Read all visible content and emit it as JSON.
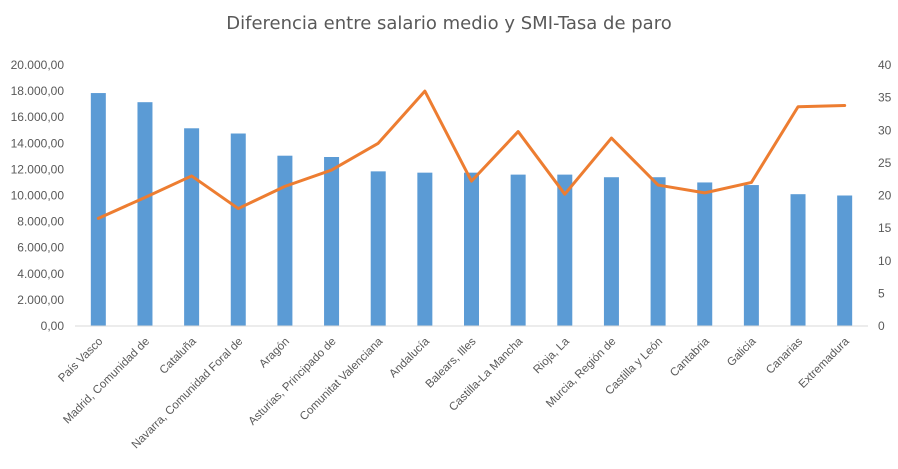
{
  "chart_data": {
    "type": "bar",
    "title": "Diferencia entre salario medio y SMI-Tasa de paro",
    "categories": [
      "País Vasco",
      "Madrid, Comunidad de",
      "Cataluña",
      "Navarra, Comunidad Foral de",
      "Aragón",
      "Asturias, Principado de",
      "Comunitat Valenciana",
      "Andalucía",
      "Balears, Illes",
      "Castilla-La Mancha",
      "Rioja, La",
      "Murcia, Región de",
      "Castilla y León",
      "Cantabria",
      "Galicia",
      "Canarias",
      "Extremadura"
    ],
    "series": [
      {
        "type": "bar",
        "axis": "left",
        "color": "#5B9BD5",
        "values": [
          17850,
          17150,
          15150,
          14750,
          13050,
          12950,
          11850,
          11750,
          11750,
          11600,
          11600,
          11400,
          11400,
          11000,
          10800,
          10100,
          10000
        ]
      },
      {
        "type": "line",
        "axis": "right",
        "color": "#ED7D31",
        "values": [
          16.5,
          19.7,
          23.0,
          18.0,
          21.4,
          23.9,
          28.0,
          36.0,
          22.2,
          29.8,
          20.2,
          28.8,
          21.6,
          20.4,
          22.0,
          33.6,
          33.8
        ]
      }
    ],
    "y_left": {
      "min": 0,
      "max": 20000,
      "step": 2000,
      "tick_labels": [
        "0,00",
        "2.000,00",
        "4.000,00",
        "6.000,00",
        "8.000,00",
        "10.000,00",
        "12.000,00",
        "14.000,00",
        "16.000,00",
        "18.000,00",
        "20.000,00"
      ]
    },
    "y_right": {
      "min": 0,
      "max": 40,
      "step": 5,
      "tick_labels": [
        "0",
        "5",
        "10",
        "15",
        "20",
        "25",
        "30",
        "35",
        "40"
      ]
    },
    "grid": false,
    "legend": "none",
    "colors": {
      "text": "#595959",
      "axis": "#D9D9D9"
    }
  }
}
